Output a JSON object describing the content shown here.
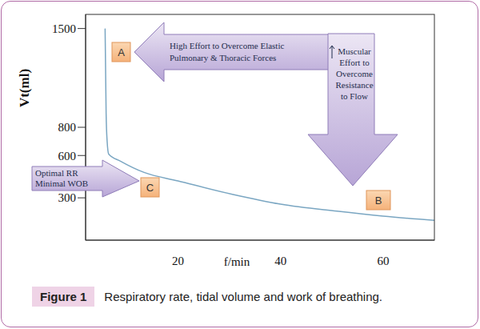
{
  "chart_data": {
    "type": "line",
    "x_label": "f/min",
    "y_label": "Vt(ml)",
    "x": [
      5.8,
      6.0,
      6.2,
      6.5,
      8.8,
      13.4,
      20,
      30.6,
      40,
      51,
      60,
      70
    ],
    "values": [
      1500,
      900,
      700,
      610,
      560,
      480,
      420,
      325,
      255,
      205,
      170,
      140
    ],
    "color": "#7aa6c2",
    "xlim": [
      2,
      70
    ],
    "xticks": [
      20,
      40,
      60
    ],
    "ylim": [
      0,
      1600
    ],
    "yticks": [
      300,
      600,
      800,
      1500
    ],
    "annotations": [
      {
        "label": "A",
        "text": [
          "High Effort to Overcome Elastic",
          "Pulmonary & Thoracic Forces"
        ]
      },
      {
        "label": "B",
        "text": [
          "Muscular",
          "Effort to",
          "Overcome",
          "Resistance",
          "to Flow"
        ]
      },
      {
        "label": "C",
        "text": [
          "Optimal RR",
          "Minimal WOB"
        ]
      }
    ]
  },
  "caption": {
    "label": "Figure 1",
    "text": "Respiratory rate, tidal volume and work of breathing."
  }
}
